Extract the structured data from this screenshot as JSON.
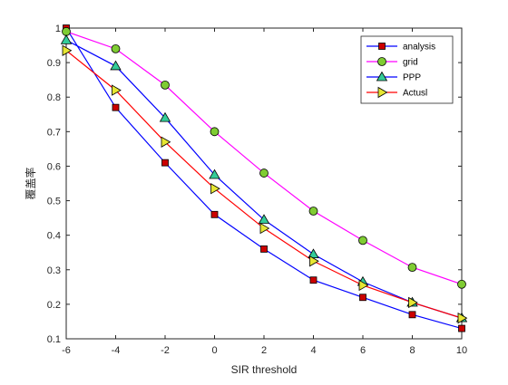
{
  "chart_data": {
    "type": "line",
    "title": "",
    "xlabel": "SIR threshold",
    "ylabel": "覆盖率",
    "xlim": [
      -6,
      10
    ],
    "ylim": [
      0.1,
      1.0
    ],
    "xticks": [
      -6,
      -4,
      -2,
      0,
      2,
      4,
      6,
      8,
      10
    ],
    "yticks": [
      0.1,
      0.2,
      0.3,
      0.4,
      0.5,
      0.6,
      0.7,
      0.8,
      0.9,
      1.0
    ],
    "xtick_labels": [
      "-6",
      "-4",
      "-2",
      "0",
      "2",
      "4",
      "6",
      "8",
      "10"
    ],
    "ytick_labels": [
      "0.1",
      "0.2",
      "0.3",
      "0.4",
      "0.5",
      "0.6",
      "0.7",
      "0.8",
      "0.9",
      "1"
    ],
    "grid": false,
    "legend_position": "top-right",
    "series": [
      {
        "name": "analysis",
        "line_color": "#0000ff",
        "marker": "square",
        "marker_fill": "#cc0000",
        "x": [
          -6,
          -4,
          -2,
          0,
          2,
          4,
          6,
          8,
          10
        ],
        "y": [
          1.0,
          0.77,
          0.61,
          0.46,
          0.36,
          0.27,
          0.22,
          0.17,
          0.13
        ]
      },
      {
        "name": "grid",
        "line_color": "#ff00ff",
        "marker": "circle",
        "marker_fill": "#7fcc33",
        "x": [
          -6,
          -4,
          -2,
          0,
          2,
          4,
          6,
          8,
          10
        ],
        "y": [
          0.99,
          0.94,
          0.835,
          0.7,
          0.58,
          0.47,
          0.385,
          0.307,
          0.258
        ]
      },
      {
        "name": "PPP",
        "line_color": "#0000ff",
        "marker": "triangle-up",
        "marker_fill": "#33cc99",
        "x": [
          -6,
          -4,
          -2,
          0,
          2,
          4,
          6,
          8,
          10
        ],
        "y": [
          0.965,
          0.89,
          0.74,
          0.575,
          0.445,
          0.345,
          0.265,
          0.205,
          0.16
        ]
      },
      {
        "name": "Actusl",
        "line_color": "#ff0000",
        "marker": "triangle-right",
        "marker_fill": "#e6e633",
        "x": [
          -6,
          -4,
          -2,
          0,
          2,
          4,
          6,
          8,
          10
        ],
        "y": [
          0.935,
          0.82,
          0.67,
          0.535,
          0.42,
          0.325,
          0.255,
          0.205,
          0.16
        ]
      }
    ]
  }
}
